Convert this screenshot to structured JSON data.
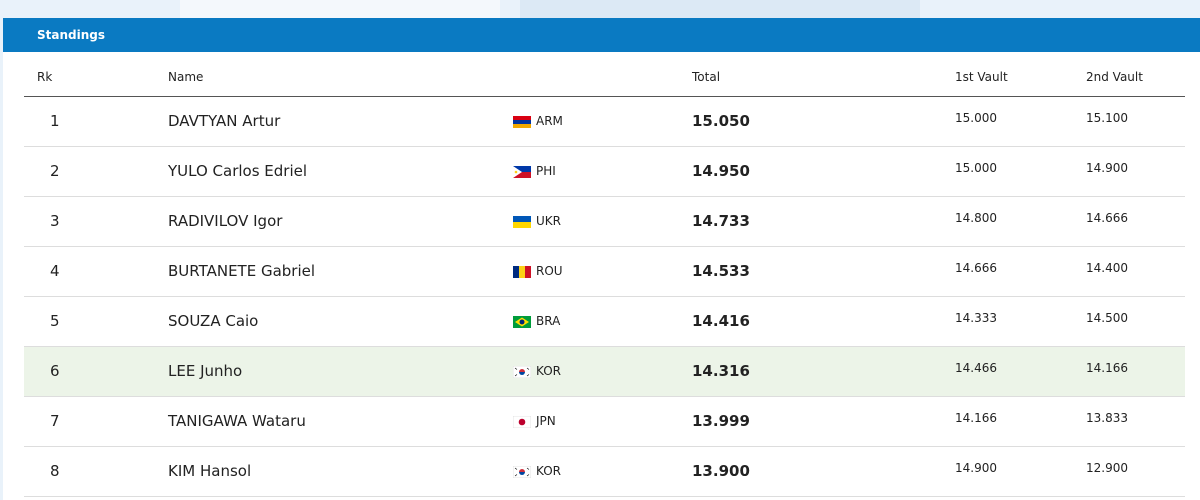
{
  "header": {
    "title": "Standings"
  },
  "table": {
    "columns": [
      "Rk",
      "Name",
      "Total",
      "1st Vault",
      "2nd Vault"
    ],
    "rows": [
      {
        "rank": "1",
        "name": "DAVTYAN Artur",
        "country": "ARM",
        "total": "15.050",
        "vault1": "15.000",
        "vault2": "15.100"
      },
      {
        "rank": "2",
        "name": "YULO Carlos Edriel",
        "country": "PHI",
        "total": "14.950",
        "vault1": "15.000",
        "vault2": "14.900"
      },
      {
        "rank": "3",
        "name": "RADIVILOV Igor",
        "country": "UKR",
        "total": "14.733",
        "vault1": "14.800",
        "vault2": "14.666"
      },
      {
        "rank": "4",
        "name": "BURTANETE Gabriel",
        "country": "ROU",
        "total": "14.533",
        "vault1": "14.666",
        "vault2": "14.400"
      },
      {
        "rank": "5",
        "name": "SOUZA Caio",
        "country": "BRA",
        "total": "14.416",
        "vault1": "14.333",
        "vault2": "14.500"
      },
      {
        "rank": "6",
        "name": "LEE Junho",
        "country": "KOR",
        "total": "14.316",
        "vault1": "14.466",
        "vault2": "14.166"
      },
      {
        "rank": "7",
        "name": "TANIGAWA Wataru",
        "country": "JPN",
        "total": "13.999",
        "vault1": "14.166",
        "vault2": "13.833"
      },
      {
        "rank": "8",
        "name": "KIM Hansol",
        "country": "KOR",
        "total": "13.900",
        "vault1": "14.900",
        "vault2": "12.900"
      }
    ]
  }
}
